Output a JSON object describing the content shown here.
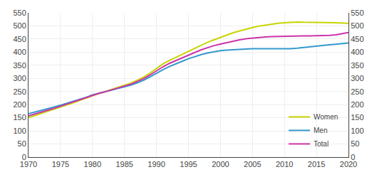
{
  "chart_data": {
    "type": "line",
    "x": [
      1970,
      1971,
      1972,
      1973,
      1974,
      1975,
      1976,
      1977,
      1978,
      1979,
      1980,
      1981,
      1982,
      1983,
      1984,
      1985,
      1986,
      1987,
      1988,
      1989,
      1990,
      1991,
      1992,
      1993,
      1994,
      1995,
      1996,
      1997,
      1998,
      1999,
      2000,
      2001,
      2002,
      2003,
      2004,
      2005,
      2006,
      2007,
      2008,
      2009,
      2010,
      2011,
      2012,
      2013,
      2014,
      2015,
      2016,
      2017,
      2018,
      2019,
      2020
    ],
    "series": [
      {
        "name": "Women",
        "color": "#c8d400",
        "values": [
          150,
          158,
          165,
          173,
          181,
          190,
          198,
          207,
          216,
          225,
          235,
          242,
          250,
          258,
          265,
          272,
          282,
          293,
          305,
          320,
          337,
          355,
          368,
          380,
          392,
          403,
          415,
          427,
          438,
          447,
          456,
          466,
          474,
          481,
          488,
          494,
          499,
          503,
          506,
          510,
          512,
          514,
          515,
          514,
          514,
          513,
          513,
          513,
          512,
          511,
          510
        ]
      },
      {
        "name": "Men",
        "color": "#3399cc",
        "values": [
          165,
          171,
          177,
          184,
          191,
          198,
          205,
          212,
          220,
          228,
          237,
          243,
          249,
          255,
          261,
          267,
          274,
          283,
          293,
          306,
          320,
          333,
          345,
          356,
          365,
          375,
          384,
          391,
          397,
          402,
          406,
          408,
          410,
          411,
          412,
          413,
          413,
          413,
          413,
          412,
          412,
          413,
          415,
          418,
          420,
          423,
          425,
          428,
          430,
          433,
          435
        ]
      },
      {
        "name": "Total",
        "color": "#cc33aa",
        "values": [
          157,
          165,
          171,
          179,
          186,
          194,
          202,
          210,
          218,
          227,
          236,
          243,
          249,
          256,
          263,
          270,
          278,
          288,
          299,
          313,
          329,
          344,
          357,
          368,
          379,
          389,
          399,
          409,
          418,
          425,
          431,
          437,
          442,
          447,
          451,
          454,
          456,
          458,
          459,
          460,
          460,
          461,
          462,
          462,
          462,
          462,
          462,
          464,
          466,
          470,
          475
        ]
      }
    ],
    "xlim": [
      1970,
      2020
    ],
    "xticks": [
      1970,
      1975,
      1980,
      1985,
      1990,
      1995,
      2000,
      2005,
      2010,
      2015,
      2020
    ],
    "ylim": [
      0,
      550
    ],
    "yticks": [
      0,
      50,
      100,
      150,
      200,
      250,
      300,
      350,
      400,
      450,
      500,
      550
    ],
    "y2lim": [
      0,
      550
    ],
    "y2ticks": [
      0,
      50,
      100,
      150,
      200,
      250,
      300,
      350,
      400,
      450,
      500,
      550
    ],
    "grid": true,
    "legend": "lower right"
  }
}
